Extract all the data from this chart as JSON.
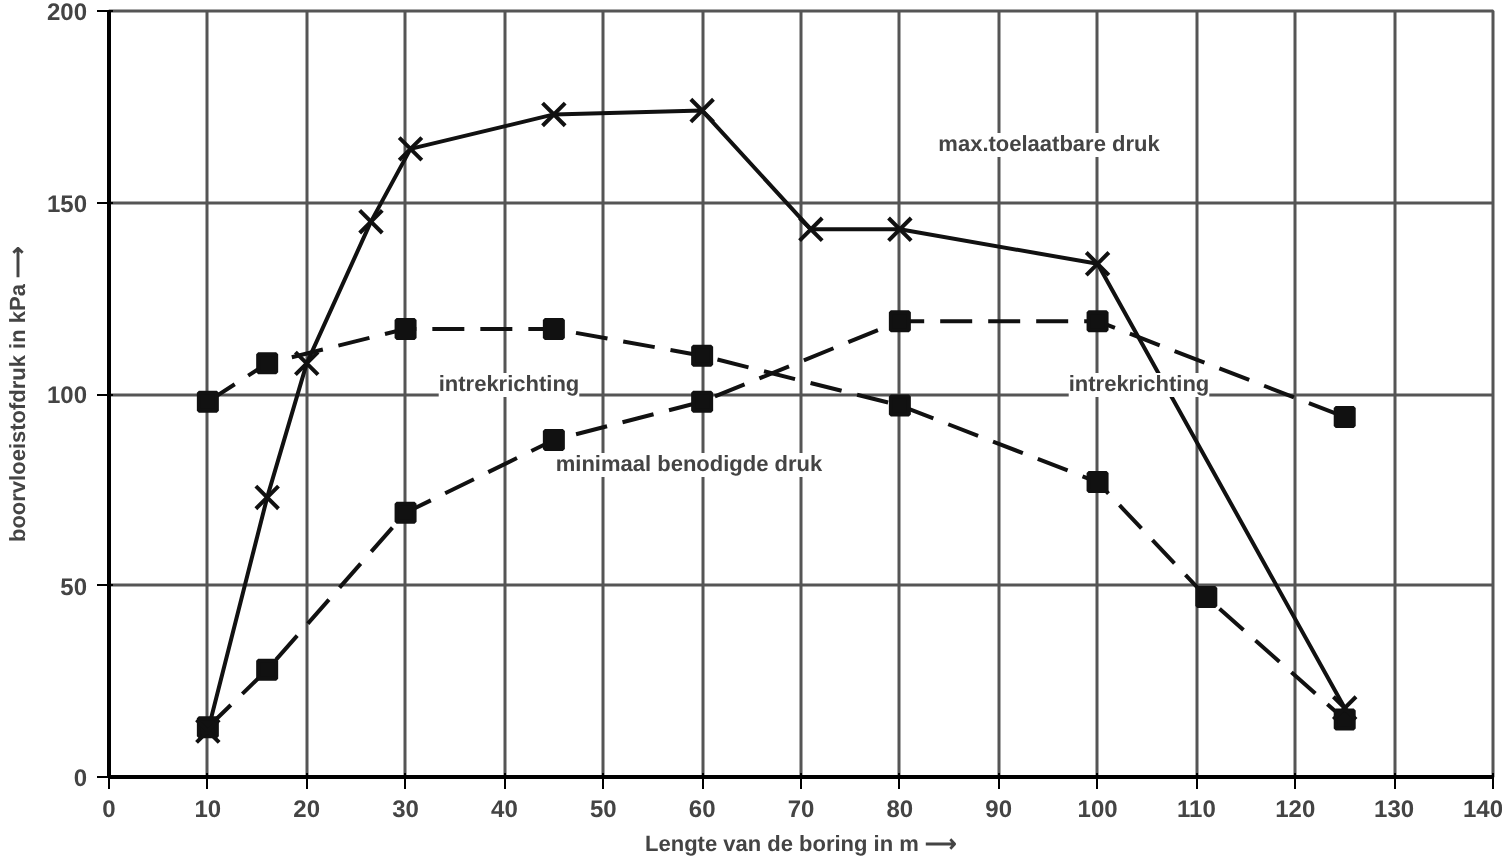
{
  "chart_data": {
    "type": "line",
    "xlabel": "Lengte van de boring in m ⟶",
    "ylabel": "boorvloeistofdruk in kPa ⟶",
    "xlim": [
      0,
      140
    ],
    "xticks": [
      0,
      10,
      20,
      30,
      40,
      50,
      60,
      70,
      80,
      90,
      100,
      110,
      120,
      130,
      140
    ],
    "ylim": [
      0,
      200
    ],
    "yticks": [
      0,
      50,
      100,
      150,
      200
    ],
    "grid": true,
    "series": [
      {
        "color": "#111111",
        "marker": "cross",
        "line_style": "solid",
        "x": [
          10,
          16,
          20,
          26.5,
          30.5,
          45,
          60,
          71,
          80,
          100,
          125
        ],
        "values": [
          12,
          73,
          108,
          145,
          164,
          173,
          174,
          143,
          143,
          134,
          18
        ]
      },
      {
        "color": "#111111",
        "marker": "square",
        "line_style": "dashed",
        "x": [
          10,
          16,
          30,
          45,
          60,
          80,
          100,
          111,
          125
        ],
        "values": [
          98,
          108,
          117,
          117,
          110,
          97,
          77,
          47,
          15
        ]
      },
      {
        "color": "#111111",
        "marker": "square",
        "line_style": "dashed",
        "x": [
          10,
          16,
          30,
          45,
          60,
          80,
          100,
          125
        ],
        "values": [
          13,
          28,
          69,
          88,
          98,
          119,
          119,
          94
        ]
      }
    ],
    "annotations": [
      "max.toelaatbare druk",
      "intrekrichting",
      "intrekrichting",
      "minimaal benodigde druk"
    ]
  }
}
